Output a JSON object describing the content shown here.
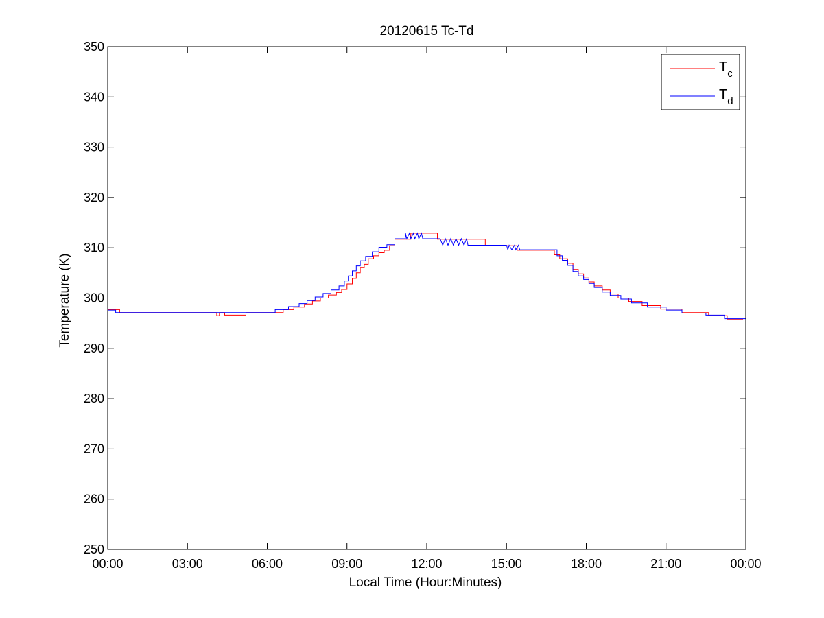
{
  "chart_data": {
    "type": "line",
    "title": "20120615 Tc-Td",
    "xlabel": "Local Time (Hour:Minutes)",
    "ylabel": "Temperature (K)",
    "xlim": [
      0,
      24
    ],
    "ylim": [
      250,
      350
    ],
    "x_unit": "hours",
    "xticks": [
      0,
      3,
      6,
      9,
      12,
      15,
      18,
      21,
      24
    ],
    "xtick_labels": [
      "00:00",
      "03:00",
      "06:00",
      "09:00",
      "12:00",
      "15:00",
      "18:00",
      "21:00",
      "00:00"
    ],
    "yticks": [
      250,
      260,
      270,
      280,
      290,
      300,
      310,
      320,
      330,
      340,
      350
    ],
    "ytick_labels": [
      "250",
      "260",
      "270",
      "280",
      "290",
      "300",
      "310",
      "320",
      "330",
      "340",
      "350"
    ],
    "grid": false,
    "legend_position": "top-right",
    "series": [
      {
        "name_base": "T",
        "name_sub": "c",
        "color": "#ff0000",
        "points": [
          [
            0.0,
            297.7
          ],
          [
            0.45,
            297.7
          ],
          [
            0.45,
            297.1
          ],
          [
            4.1,
            297.1
          ],
          [
            4.1,
            296.5
          ],
          [
            4.2,
            296.5
          ],
          [
            4.2,
            297.1
          ],
          [
            4.4,
            297.1
          ],
          [
            4.4,
            296.6
          ],
          [
            5.2,
            296.6
          ],
          [
            5.2,
            297.1
          ],
          [
            6.6,
            297.1
          ],
          [
            6.6,
            297.7
          ],
          [
            7.0,
            297.7
          ],
          [
            7.0,
            298.2
          ],
          [
            7.4,
            298.2
          ],
          [
            7.4,
            298.8
          ],
          [
            7.7,
            298.8
          ],
          [
            7.7,
            299.4
          ],
          [
            8.0,
            299.4
          ],
          [
            8.0,
            300.0
          ],
          [
            8.3,
            300.0
          ],
          [
            8.3,
            300.6
          ],
          [
            8.6,
            300.6
          ],
          [
            8.6,
            301.1
          ],
          [
            8.8,
            301.1
          ],
          [
            8.8,
            301.7
          ],
          [
            9.0,
            301.7
          ],
          [
            9.0,
            302.8
          ],
          [
            9.2,
            302.8
          ],
          [
            9.2,
            303.9
          ],
          [
            9.35,
            303.9
          ],
          [
            9.35,
            305.0
          ],
          [
            9.5,
            305.0
          ],
          [
            9.5,
            306.1
          ],
          [
            9.65,
            306.1
          ],
          [
            9.65,
            306.7
          ],
          [
            9.8,
            306.7
          ],
          [
            9.8,
            307.8
          ],
          [
            10.0,
            307.8
          ],
          [
            10.0,
            308.4
          ],
          [
            10.2,
            308.4
          ],
          [
            10.2,
            309.0
          ],
          [
            10.4,
            309.0
          ],
          [
            10.4,
            309.5
          ],
          [
            10.6,
            309.5
          ],
          [
            10.6,
            310.4
          ],
          [
            10.8,
            310.4
          ],
          [
            10.8,
            311.7
          ],
          [
            11.4,
            311.7
          ],
          [
            11.4,
            312.9
          ],
          [
            12.4,
            312.9
          ],
          [
            12.4,
            311.7
          ],
          [
            14.2,
            311.7
          ],
          [
            14.2,
            310.4
          ],
          [
            15.4,
            310.4
          ],
          [
            15.4,
            309.5
          ],
          [
            16.8,
            309.5
          ],
          [
            16.8,
            308.6
          ],
          [
            17.0,
            308.6
          ],
          [
            17.0,
            307.8
          ],
          [
            17.3,
            307.8
          ],
          [
            17.3,
            306.9
          ],
          [
            17.5,
            306.9
          ],
          [
            17.5,
            305.7
          ],
          [
            17.7,
            305.7
          ],
          [
            17.7,
            304.8
          ],
          [
            17.9,
            304.8
          ],
          [
            17.9,
            304.0
          ],
          [
            18.1,
            304.0
          ],
          [
            18.1,
            303.2
          ],
          [
            18.3,
            303.2
          ],
          [
            18.3,
            302.4
          ],
          [
            18.6,
            302.4
          ],
          [
            18.6,
            301.6
          ],
          [
            18.9,
            301.6
          ],
          [
            18.9,
            300.8
          ],
          [
            19.2,
            300.8
          ],
          [
            19.2,
            300.0
          ],
          [
            19.6,
            300.0
          ],
          [
            19.6,
            299.3
          ],
          [
            20.1,
            299.3
          ],
          [
            20.1,
            298.5
          ],
          [
            20.8,
            298.5
          ],
          [
            20.8,
            297.8
          ],
          [
            21.6,
            297.8
          ],
          [
            21.6,
            297.1
          ],
          [
            22.6,
            297.1
          ],
          [
            22.6,
            296.5
          ],
          [
            23.3,
            296.5
          ],
          [
            23.3,
            295.8
          ],
          [
            23.9,
            295.8
          ]
        ]
      },
      {
        "name_base": "T",
        "name_sub": "d",
        "color": "#0000ff",
        "points": [
          [
            0.0,
            297.6
          ],
          [
            0.3,
            297.6
          ],
          [
            0.3,
            297.1
          ],
          [
            6.3,
            297.1
          ],
          [
            6.3,
            297.7
          ],
          [
            6.8,
            297.7
          ],
          [
            6.8,
            298.3
          ],
          [
            7.2,
            298.3
          ],
          [
            7.2,
            298.9
          ],
          [
            7.5,
            298.9
          ],
          [
            7.5,
            299.5
          ],
          [
            7.8,
            299.5
          ],
          [
            7.8,
            300.2
          ],
          [
            8.1,
            300.2
          ],
          [
            8.1,
            300.9
          ],
          [
            8.4,
            300.9
          ],
          [
            8.4,
            301.6
          ],
          [
            8.7,
            301.6
          ],
          [
            8.7,
            302.4
          ],
          [
            8.9,
            302.4
          ],
          [
            8.9,
            303.4
          ],
          [
            9.05,
            303.4
          ],
          [
            9.05,
            304.4
          ],
          [
            9.2,
            304.4
          ],
          [
            9.2,
            305.4
          ],
          [
            9.35,
            305.4
          ],
          [
            9.35,
            306.4
          ],
          [
            9.5,
            306.4
          ],
          [
            9.5,
            307.4
          ],
          [
            9.7,
            307.4
          ],
          [
            9.7,
            308.3
          ],
          [
            9.95,
            308.3
          ],
          [
            9.95,
            309.2
          ],
          [
            10.2,
            309.2
          ],
          [
            10.2,
            310.1
          ],
          [
            10.5,
            310.1
          ],
          [
            10.5,
            310.6
          ],
          [
            10.8,
            310.6
          ],
          [
            10.8,
            311.8
          ],
          [
            11.2,
            311.8
          ],
          [
            11.2,
            312.9
          ],
          [
            11.25,
            311.8
          ],
          [
            11.35,
            312.9
          ],
          [
            11.4,
            311.8
          ],
          [
            11.5,
            312.9
          ],
          [
            11.55,
            311.8
          ],
          [
            11.65,
            312.9
          ],
          [
            11.7,
            311.8
          ],
          [
            11.8,
            312.9
          ],
          [
            11.85,
            311.8
          ],
          [
            11.95,
            311.8
          ],
          [
            12.5,
            311.8
          ],
          [
            12.6,
            310.5
          ],
          [
            12.7,
            311.8
          ],
          [
            12.8,
            310.5
          ],
          [
            12.9,
            311.8
          ],
          [
            13.0,
            310.5
          ],
          [
            13.1,
            311.8
          ],
          [
            13.2,
            310.5
          ],
          [
            13.3,
            311.8
          ],
          [
            13.4,
            310.5
          ],
          [
            13.5,
            311.8
          ],
          [
            13.55,
            310.5
          ],
          [
            15.0,
            310.5
          ],
          [
            15.05,
            309.6
          ],
          [
            15.1,
            310.5
          ],
          [
            15.2,
            309.6
          ],
          [
            15.3,
            310.5
          ],
          [
            15.35,
            309.6
          ],
          [
            15.45,
            310.5
          ],
          [
            15.5,
            309.6
          ],
          [
            16.9,
            309.6
          ],
          [
            16.9,
            308.4
          ],
          [
            17.1,
            308.4
          ],
          [
            17.1,
            307.5
          ],
          [
            17.3,
            307.5
          ],
          [
            17.3,
            306.5
          ],
          [
            17.5,
            306.5
          ],
          [
            17.5,
            305.3
          ],
          [
            17.7,
            305.3
          ],
          [
            17.7,
            304.4
          ],
          [
            17.9,
            304.4
          ],
          [
            17.9,
            303.7
          ],
          [
            18.1,
            303.7
          ],
          [
            18.1,
            302.9
          ],
          [
            18.3,
            302.9
          ],
          [
            18.3,
            302.1
          ],
          [
            18.6,
            302.1
          ],
          [
            18.6,
            301.2
          ],
          [
            18.9,
            301.2
          ],
          [
            18.9,
            300.5
          ],
          [
            19.3,
            300.5
          ],
          [
            19.3,
            299.8
          ],
          [
            19.7,
            299.8
          ],
          [
            19.7,
            299.0
          ],
          [
            20.3,
            299.0
          ],
          [
            20.3,
            298.2
          ],
          [
            21.0,
            298.2
          ],
          [
            21.0,
            297.6
          ],
          [
            21.6,
            297.6
          ],
          [
            21.6,
            297.0
          ],
          [
            22.5,
            297.0
          ],
          [
            22.5,
            296.6
          ],
          [
            23.2,
            296.6
          ],
          [
            23.2,
            295.9
          ],
          [
            24.0,
            295.9
          ]
        ]
      }
    ]
  }
}
